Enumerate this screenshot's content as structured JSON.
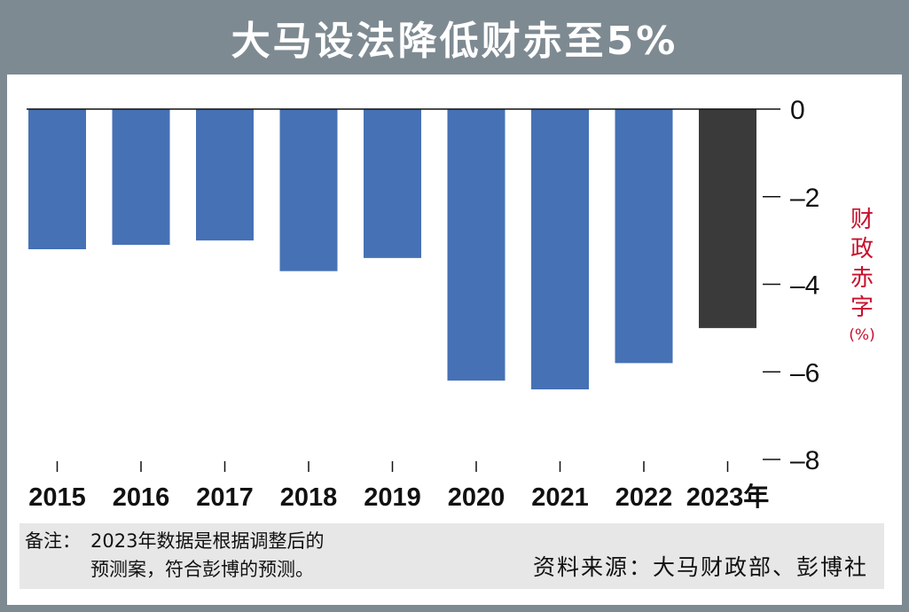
{
  "header": {
    "title": "大马设法降低财赤至5%"
  },
  "chart_data": {
    "type": "bar",
    "title": "大马设法降低财赤至5%",
    "categories": [
      "2015",
      "2016",
      "2017",
      "2018",
      "2019",
      "2020",
      "2021",
      "2022",
      "2023年"
    ],
    "values": [
      -3.2,
      -3.1,
      -3.0,
      -3.7,
      -3.4,
      -6.2,
      -6.4,
      -5.8,
      -5.0
    ],
    "ylabel": "财政赤字",
    "yunit": "(%)",
    "ylim": [
      -8,
      0
    ],
    "yticks": [
      "0",
      "–2",
      "–4",
      "–6",
      "–8"
    ],
    "colors": {
      "actual": "#4671b5",
      "forecast": "#3a3a3a"
    },
    "forecast_index": 8,
    "grid": false
  },
  "footer": {
    "note_key": "备注：",
    "note_lines": [
      "2023年数据是根据调整后的",
      "预测案，符合彭博的预测。"
    ],
    "source": "资料来源：大马财政部、彭博社"
  }
}
